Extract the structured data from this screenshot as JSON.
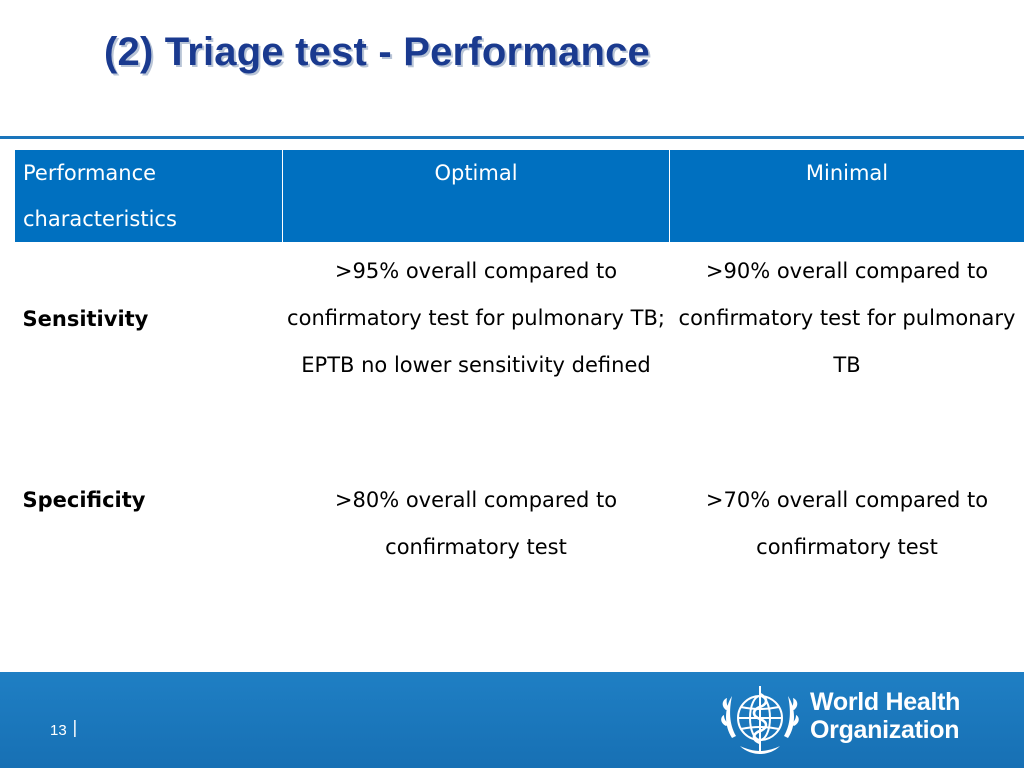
{
  "slide": {
    "title": "(2) Triage test - Performance",
    "page_number": "13",
    "page_separator": "|"
  },
  "table": {
    "headers": [
      "Performance characteristics",
      "Optimal",
      "Minimal"
    ],
    "rows": [
      {
        "label": "Sensitivity",
        "optimal": ">95% overall compared to confirmatory test for pulmonary TB; EPTB no lower sensitivity defined",
        "minimal": ">90% overall compared to confirmatory test for pulmonary TB"
      },
      {
        "label": "Specificity",
        "optimal": ">80% overall compared to confirmatory test",
        "minimal": ">70% overall compared to confirmatory test"
      }
    ]
  },
  "logo": {
    "line1": "World Health",
    "line2": "Organization",
    "icon": "who-emblem-icon"
  },
  "colors": {
    "title": "#1a3a8f",
    "header_bg": "#0070c0",
    "footer_bg": "#1a75bb",
    "rule": "#1a75bb"
  }
}
